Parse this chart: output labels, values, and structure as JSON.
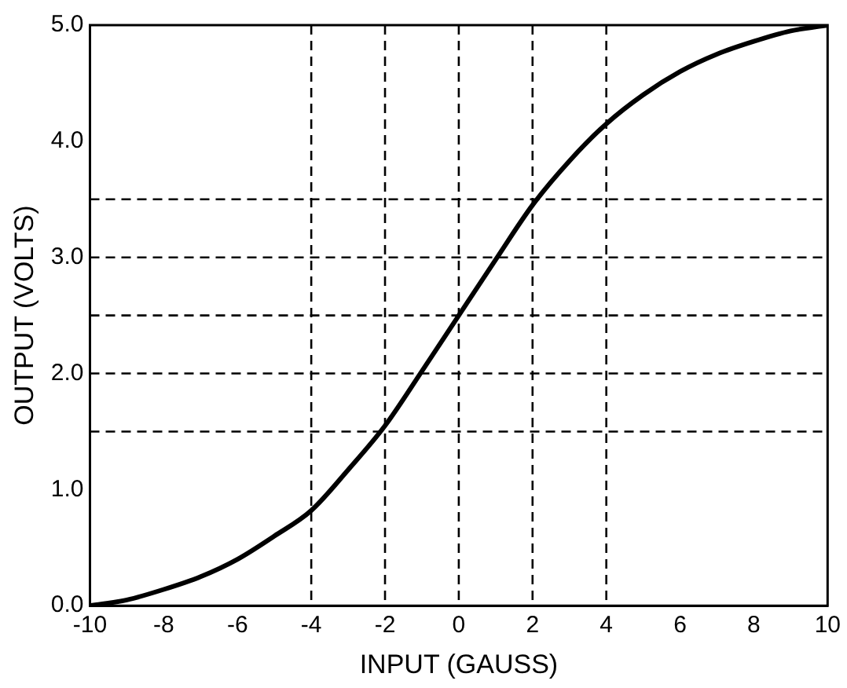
{
  "chart_data": {
    "type": "line",
    "xlabel": "INPUT (GAUSS)",
    "ylabel": "OUTPUT (VOLTS)",
    "x": [
      -10,
      -9,
      -8,
      -7,
      -6,
      -5,
      -4,
      -3,
      -2,
      -1,
      0,
      1,
      2,
      3,
      4,
      5,
      6,
      7,
      8,
      9,
      10
    ],
    "series": [
      {
        "color": "#000000",
        "values": [
          0,
          0.05,
          0.14,
          0.25,
          0.4,
          0.6,
          0.82,
          1.17,
          1.55,
          2.02,
          2.5,
          2.98,
          3.45,
          3.83,
          4.15,
          4.4,
          4.6,
          4.75,
          4.86,
          4.95,
          5
        ]
      }
    ],
    "xlim": [
      -10,
      10
    ],
    "ylim": [
      0,
      5
    ],
    "xticks": [
      -10,
      -8,
      -6,
      -4,
      -2,
      0,
      2,
      4,
      6,
      8,
      10
    ],
    "yticks": [
      {
        "value": 0,
        "label": "0.0"
      },
      {
        "value": 1,
        "label": "1.0"
      },
      {
        "value": 2,
        "label": "2.0"
      },
      {
        "value": 3,
        "label": "3.0"
      },
      {
        "value": 4,
        "label": "4.0"
      },
      {
        "value": 5,
        "label": "5.0"
      }
    ],
    "ref_lines": [
      {
        "axis": "x",
        "value": -4,
        "color": "#000000",
        "line_style": "dashed"
      },
      {
        "axis": "x",
        "value": -2,
        "color": "#000000",
        "line_style": "dashed"
      },
      {
        "axis": "x",
        "value": 0,
        "color": "#000000",
        "line_style": "dashed"
      },
      {
        "axis": "x",
        "value": 2,
        "color": "#000000",
        "line_style": "dashed"
      },
      {
        "axis": "x",
        "value": 4,
        "color": "#000000",
        "line_style": "dashed"
      },
      {
        "axis": "y",
        "value": 1.5,
        "color": "#000000",
        "line_style": "dashed"
      },
      {
        "axis": "y",
        "value": 2,
        "color": "#000000",
        "line_style": "dashed"
      },
      {
        "axis": "y",
        "value": 2.5,
        "color": "#000000",
        "line_style": "dashed"
      },
      {
        "axis": "y",
        "value": 3,
        "color": "#000000",
        "line_style": "dashed"
      },
      {
        "axis": "y",
        "value": 3.5,
        "color": "#000000",
        "line_style": "dashed"
      }
    ],
    "grid": false,
    "legend": false,
    "marker": "none",
    "line_style": "solid"
  }
}
